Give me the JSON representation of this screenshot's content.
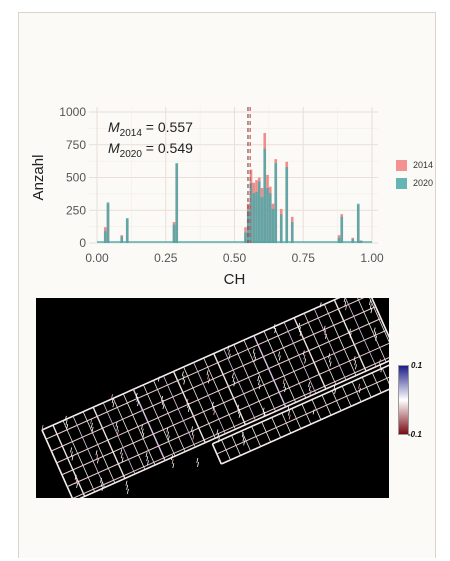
{
  "chart_data": [
    {
      "type": "bar",
      "title": "",
      "xlabel": "CH",
      "ylabel": "Anzahl",
      "xlim": [
        0,
        1
      ],
      "ylim": [
        0,
        1000
      ],
      "x_ticks": [
        "0.00",
        "0.25",
        "0.50",
        "0.75",
        "1.00"
      ],
      "y_ticks": [
        "0",
        "250",
        "500",
        "750",
        "1000"
      ],
      "grid": true,
      "legend_position": "right",
      "annotation": {
        "line1_sym": "M",
        "line1_sub": "2014",
        "line1_val": " = 0.557",
        "line2_sym": "M",
        "line2_sub": "2020",
        "line2_val": " = 0.549"
      },
      "mean_lines": [
        0.557,
        0.549
      ],
      "series": [
        {
          "name": "2014",
          "color": "#f08080",
          "points": [
            [
              0.03,
              120
            ],
            [
              0.04,
              300
            ],
            [
              0.09,
              60
            ],
            [
              0.11,
              180
            ],
            [
              0.28,
              160
            ],
            [
              0.29,
              600
            ],
            [
              0.54,
              120
            ],
            [
              0.55,
              300
            ],
            [
              0.56,
              560
            ],
            [
              0.57,
              460
            ],
            [
              0.58,
              480
            ],
            [
              0.59,
              500
            ],
            [
              0.6,
              420
            ],
            [
              0.61,
              840
            ],
            [
              0.62,
              520
            ],
            [
              0.63,
              430
            ],
            [
              0.64,
              300
            ],
            [
              0.65,
              640
            ],
            [
              0.67,
              260
            ],
            [
              0.69,
              620
            ],
            [
              0.71,
              200
            ],
            [
              0.88,
              60
            ],
            [
              0.89,
              220
            ],
            [
              0.93,
              40
            ],
            [
              0.95,
              290
            ],
            [
              0.96,
              20
            ]
          ]
        },
        {
          "name": "2020",
          "color": "#4aa8a8",
          "points": [
            [
              0.03,
              90
            ],
            [
              0.04,
              310
            ],
            [
              0.09,
              50
            ],
            [
              0.11,
              190
            ],
            [
              0.28,
              140
            ],
            [
              0.29,
              610
            ],
            [
              0.54,
              80
            ],
            [
              0.55,
              250
            ],
            [
              0.56,
              460
            ],
            [
              0.57,
              380
            ],
            [
              0.58,
              390
            ],
            [
              0.59,
              470
            ],
            [
              0.6,
              350
            ],
            [
              0.61,
              720
            ],
            [
              0.62,
              420
            ],
            [
              0.63,
              380
            ],
            [
              0.64,
              260
            ],
            [
              0.65,
              610
            ],
            [
              0.67,
              220
            ],
            [
              0.69,
              580
            ],
            [
              0.71,
              160
            ],
            [
              0.88,
              40
            ],
            [
              0.89,
              200
            ],
            [
              0.93,
              30
            ],
            [
              0.95,
              300
            ],
            [
              0.96,
              15
            ]
          ]
        }
      ]
    }
  ],
  "colorbar": {
    "max": "0.1",
    "min": "-0.1",
    "top_color": "#1d1d8a",
    "mid_color": "#ffffff",
    "bottom_color": "#7a0a14"
  }
}
